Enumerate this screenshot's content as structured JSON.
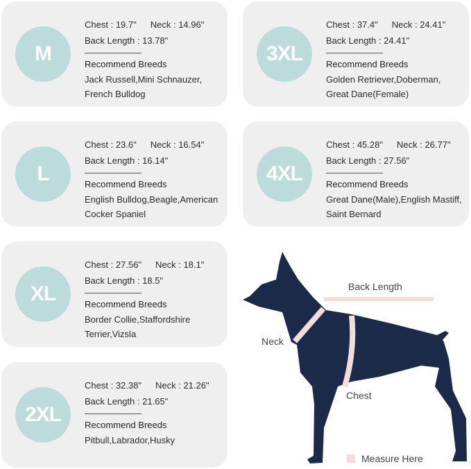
{
  "labels": {
    "chest": "Chest",
    "neck": "Neck",
    "back": "Back Length",
    "recommend": "Recommend Breeds",
    "sep": " : "
  },
  "sizes": [
    {
      "size": "M",
      "chest": "19.7\"",
      "neck": "14.96\"",
      "back": "13.78\"",
      "breeds": [
        "Jack Russell,Mini Schnauzer,",
        "French Bulldog"
      ]
    },
    {
      "size": "3XL",
      "chest": "37.4\"",
      "neck": "24.41\"",
      "back": "24.41\"",
      "breeds": [
        "Golden Retriever,Doberman,",
        "Great Dane(Female)"
      ]
    },
    {
      "size": "L",
      "chest": "23.6\"",
      "neck": "16.54\"",
      "back": "16.14\"",
      "breeds": [
        "English Bulldog,Beagle,American",
        "Cocker Spaniel"
      ]
    },
    {
      "size": "4XL",
      "chest": "45.28\"",
      "neck": "26.77\"",
      "back": "27.56\"",
      "breeds": [
        "Great Dane(Male),English Mastiff,",
        "Saint Bernard"
      ]
    },
    {
      "size": "XL",
      "chest": "27.56\"",
      "neck": "18.1\"",
      "back": "18.5\"",
      "breeds": [
        "Border Collie,Staffordshire",
        "Terrier,Vizsla"
      ]
    },
    {
      "size": "2XL",
      "chest": "32.38\"",
      "neck": "21.26\"",
      "back": "21.65\"",
      "breeds": [
        "Pitbull,Labrador,Husky"
      ]
    }
  ],
  "diagram": {
    "back_length": "Back Length",
    "neck": "Neck",
    "chest": "Chest",
    "legend": "Measure Here"
  },
  "colors": {
    "card": "#efefef",
    "circle": "#bcdcdc",
    "dog": "#1c2a4a",
    "measure": "#f2ddd9"
  }
}
